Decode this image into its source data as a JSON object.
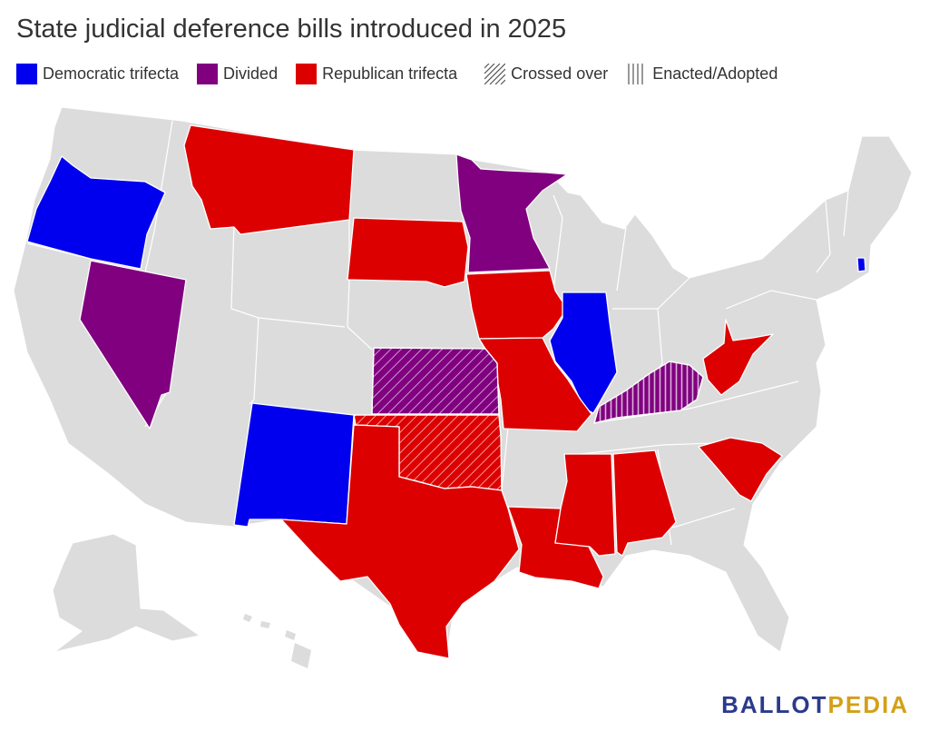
{
  "title": "State judicial deference bills introduced in 2025",
  "legend": [
    {
      "label": "Democratic trifecta",
      "color": "#0000ee",
      "pattern": "solid"
    },
    {
      "label": "Divided",
      "color": "#800080",
      "pattern": "solid"
    },
    {
      "label": "Republican trifecta",
      "color": "#dd0000",
      "pattern": "solid"
    },
    {
      "label": "Crossed over",
      "color": "#555555",
      "pattern": "diagonal"
    },
    {
      "label": "Enacted/Adopted",
      "color": "#555555",
      "pattern": "vertical"
    }
  ],
  "colors": {
    "democratic": "#0000ee",
    "divided": "#800080",
    "republican": "#dd0000",
    "none": "#dcdcdc",
    "logo_ballot": "#2b3a8c",
    "logo_pedia": "#d4a017"
  },
  "states": {
    "Oregon": "democratic",
    "New Mexico": "democratic",
    "Illinois": "democratic",
    "Rhode Island": "democratic",
    "Minnesota": "divided",
    "Nevada": "divided",
    "Kansas": "divided",
    "Kentucky": "divided",
    "Montana": "republican",
    "South Dakota": "republican",
    "Iowa": "republican",
    "Missouri": "republican",
    "Oklahoma": "republican",
    "Texas": "republican",
    "Louisiana": "republican",
    "Mississippi": "republican",
    "Alabama": "republican",
    "South Carolina": "republican",
    "West Virginia": "republican"
  },
  "crossed_over": [
    "Kansas",
    "Oklahoma"
  ],
  "enacted_adopted": [
    "Kentucky"
  ],
  "logo": {
    "ballot": "BALLOT",
    "pedia": "PEDIA"
  }
}
